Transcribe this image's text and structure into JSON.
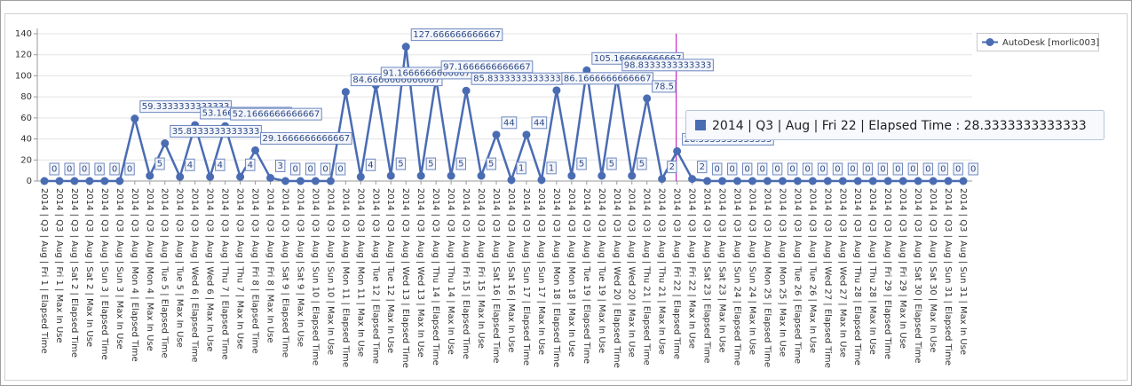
{
  "chart_data": {
    "type": "line",
    "categories": [
      "2014 | Q3 | Aug | Fri 1 | Elapsed Time",
      "2014 | Q3 | Aug | Fri 1 | Max In Use",
      "2014 | Q3 | Aug | Sat 2 | Elapsed Time",
      "2014 | Q3 | Aug | Sat 2 | Max In Use",
      "2014 | Q3 | Aug | Sun 3 | Elapsed Time",
      "2014 | Q3 | Aug | Sun 3 | Max In Use",
      "2014 | Q3 | Aug | Mon 4 | Elapsed Time",
      "2014 | Q3 | Aug | Mon 4 | Max In Use",
      "2014 | Q3 | Aug | Tue 5 | Elapsed Time",
      "2014 | Q3 | Aug | Tue 5 | Max In Use",
      "2014 | Q3 | Aug | Wed 6 | Elapsed Time",
      "2014 | Q3 | Aug | Wed 6 | Max In Use",
      "2014 | Q3 | Aug | Thu 7 | Elapsed Time",
      "2014 | Q3 | Aug | Thu 7 | Max In Use",
      "2014 | Q3 | Aug | Fri 8 | Elapsed Time",
      "2014 | Q3 | Aug | Fri 8 | Max In Use",
      "2014 | Q3 | Aug | Sat 9 | Elapsed Time",
      "2014 | Q3 | Aug | Sat 9 | Max In Use",
      "2014 | Q3 | Aug | Sun 10 | Elapsed Time",
      "2014 | Q3 | Aug | Sun 10 | Max In Use",
      "2014 | Q3 | Aug | Mon 11 | Elapsed Time",
      "2014 | Q3 | Aug | Mon 11 | Max In Use",
      "2014 | Q3 | Aug | Tue 12 | Elapsed Time",
      "2014 | Q3 | Aug | Tue 12 | Max In Use",
      "2014 | Q3 | Aug | Wed 13 | Elapsed Time",
      "2014 | Q3 | Aug | Wed 13 | Max In Use",
      "2014 | Q3 | Aug | Thu 14 | Elapsed Time",
      "2014 | Q3 | Aug | Thu 14 | Max In Use",
      "2014 | Q3 | Aug | Fri 15 | Elapsed Time",
      "2014 | Q3 | Aug | Fri 15 | Max In Use",
      "2014 | Q3 | Aug | Sat 16 | Elapsed Time",
      "2014 | Q3 | Aug | Sat 16 | Max In Use",
      "2014 | Q3 | Aug | Sun 17 | Elapsed Time",
      "2014 | Q3 | Aug | Sun 17 | Max In Use",
      "2014 | Q3 | Aug | Mon 18 | Elapsed Time",
      "2014 | Q3 | Aug | Mon 18 | Max In Use",
      "2014 | Q3 | Aug | Tue 19 | Elapsed Time",
      "2014 | Q3 | Aug | Tue 19 | Max In Use",
      "2014 | Q3 | Aug | Wed 20 | Elapsed Time",
      "2014 | Q3 | Aug | Wed 20 | Max In Use",
      "2014 | Q3 | Aug | Thu 21 | Elapsed Time",
      "2014 | Q3 | Aug | Thu 21 | Max In Use",
      "2014 | Q3 | Aug | Fri 22 | Elapsed Time",
      "2014 | Q3 | Aug | Fri 22 | Max In Use",
      "2014 | Q3 | Aug | Sat 23 | Elapsed Time",
      "2014 | Q3 | Aug | Sat 23 | Max In Use",
      "2014 | Q3 | Aug | Sun 24 | Elapsed Time",
      "2014 | Q3 | Aug | Sun 24 | Max In Use",
      "2014 | Q3 | Aug | Mon 25 | Elapsed Time",
      "2014 | Q3 | Aug | Mon 25 | Max In Use",
      "2014 | Q3 | Aug | Tue 26 | Elapsed Time",
      "2014 | Q3 | Aug | Tue 26 | Max In Use",
      "2014 | Q3 | Aug | Wed 27 | Elapsed Time",
      "2014 | Q3 | Aug | Wed 27 | Max In Use",
      "2014 | Q3 | Aug | Thu 28 | Elapsed Time",
      "2014 | Q3 | Aug | Thu 28 | Max In Use",
      "2014 | Q3 | Aug | Fri 29 | Elapsed Time",
      "2014 | Q3 | Aug | Fri 29 | Max In Use",
      "2014 | Q3 | Aug | Sat 30 | Elapsed Time",
      "2014 | Q3 | Aug | Sat 30 | Max In Use",
      "2014 | Q3 | Aug | Sun 31 | Elapsed Time",
      "2014 | Q3 | Aug | Sun 31 | Max In Use"
    ],
    "series": [
      {
        "name": "AutoDesk [morlic003]",
        "color": "#4a6cb3",
        "values": [
          0,
          0,
          0,
          0,
          0,
          0,
          59.3333333333333,
          5,
          35.8333333333333,
          4,
          53.1666666666667,
          4,
          52.1666666666667,
          4,
          29.1666666666667,
          3,
          0,
          0,
          0,
          0,
          84.6666666666667,
          4,
          91.1666666666667,
          5,
          127.666666666667,
          5,
          97.1666666666667,
          5,
          85.8333333333333,
          5,
          44,
          1,
          44,
          1,
          86.1666666666667,
          5,
          105.166666666667,
          5,
          98.8333333333333,
          5,
          78.5,
          2,
          28.3333333333333,
          2,
          0,
          0,
          0,
          0,
          0,
          0,
          0,
          0,
          0,
          0,
          0,
          0,
          0,
          0,
          0,
          0,
          0,
          0
        ]
      }
    ],
    "ylim": [
      0,
      140
    ],
    "yticks": [
      0,
      20,
      40,
      60,
      80,
      100,
      120,
      140
    ],
    "grid": true,
    "legend": "top-right",
    "tooltip": {
      "text": "2014 | Q3 | Aug | Fri 22 | Elapsed Time : 28.3333333333333",
      "index": 42
    }
  }
}
